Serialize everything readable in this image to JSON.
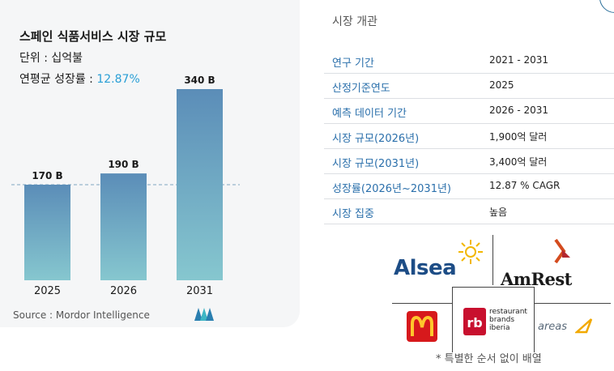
{
  "chart": {
    "title": "스페인 식품서비스 시장 규모",
    "unit_text": "단위 : 십억불",
    "cagr_label": "연평균 성장률 : ",
    "cagr_value": "12.87%",
    "source": "Source :  Mordor Intelligence"
  },
  "chart_data": {
    "type": "bar",
    "title": "스페인 식품서비스 시장 규모",
    "categories": [
      "2025",
      "2026",
      "2031"
    ],
    "values": [
      170,
      190,
      340
    ],
    "data_labels": [
      "170 B",
      "190 B",
      "340 B"
    ],
    "reference_line_value": 170,
    "bar_color_top": "#5b8db8",
    "bar_color_bottom": "#86c7cf"
  },
  "overview": {
    "title": "시장 개관",
    "rows": [
      {
        "key": "연구 기간",
        "value": "2021 - 2031"
      },
      {
        "key": "산정기준연도",
        "value": "2025"
      },
      {
        "key": "예측 데이터 기간",
        "value": "2026 - 2031"
      },
      {
        "key": "시장 규모(2026년)",
        "value": "1,900억 달러"
      },
      {
        "key": "시장 규모(2031년)",
        "value": "3,400억 달러"
      },
      {
        "key": "성장률(2026년~2031년)",
        "value": "12.87 % CAGR"
      },
      {
        "key": "시장 집중",
        "value": "높음"
      }
    ]
  },
  "logos": {
    "alsea": "Alsea",
    "amrest": "AmRest",
    "rbi_line1": "restaurant",
    "rbi_line2": "brands",
    "rbi_line3": "iberia",
    "areas": "areas",
    "note": "* 특별한 순서 없이 배열"
  }
}
